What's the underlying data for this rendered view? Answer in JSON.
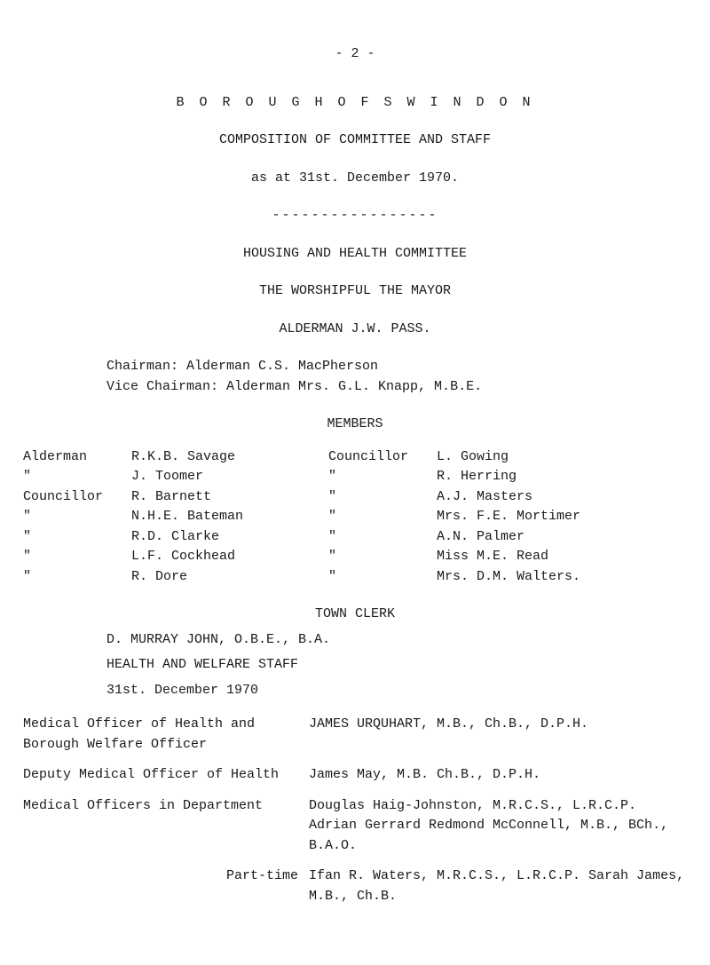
{
  "page_number": "- 2 -",
  "header": {
    "borough_line": "B O R O U G H   O F   S W I N D O N",
    "composition": "COMPOSITION OF COMMITTEE AND STAFF",
    "as_at": "as at 31st. December 1970.",
    "dashes": "-----------------",
    "committee": "HOUSING AND HEALTH COMMITTEE",
    "mayor": "THE WORSHIPFUL THE MAYOR",
    "alderman": "ALDERMAN J.W. PASS."
  },
  "leaders": {
    "chairman": "Chairman:      Alderman C.S. MacPherson",
    "vice_chairman": "Vice Chairman: Alderman Mrs. G.L. Knapp, M.B.E."
  },
  "members_header": "MEMBERS",
  "members": [
    {
      "lt": "Alderman",
      "ln": "R.K.B. Savage",
      "rt": "Councillor",
      "rn": "L. Gowing"
    },
    {
      "lt": "\"",
      "ln": "J. Toomer",
      "rt": "\"",
      "rn": "R. Herring"
    },
    {
      "lt": "Councillor",
      "ln": "R. Barnett",
      "rt": "\"",
      "rn": "A.J. Masters"
    },
    {
      "lt": "\"",
      "ln": "N.H.E. Bateman",
      "rt": "\"",
      "rn": "Mrs. F.E. Mortimer"
    },
    {
      "lt": "\"",
      "ln": "R.D. Clarke",
      "rt": "\"",
      "rn": "A.N. Palmer"
    },
    {
      "lt": "\"",
      "ln": "L.F. Cockhead",
      "rt": "\"",
      "rn": "Miss M.E. Read"
    },
    {
      "lt": "\"",
      "ln": "R. Dore",
      "rt": "\"",
      "rn": "Mrs. D.M. Walters."
    }
  ],
  "town_clerk_header": "TOWN CLERK",
  "town_clerk": "D. MURRAY JOHN, O.B.E., B.A.",
  "hw_staff_header": "HEALTH AND WELFARE STAFF",
  "hw_date": "31st. December 1970",
  "staff": {
    "moh_label": "Medical Officer of Health and Borough Welfare Officer",
    "moh_person": "JAMES URQUHART, M.B., Ch.B., D.P.H.",
    "dmoh_label": "Deputy Medical Officer of Health",
    "dmoh_person": "James May, M.B. Ch.B., D.P.H.",
    "dept_label": "Medical Officers in Department",
    "dept_people": "Douglas Haig-Johnston, M.R.C.S., L.R.C.P. Adrian Gerrard Redmond McConnell, M.B., BCh., B.A.O.",
    "pt_label": "Part-time",
    "pt_people": "Ifan R. Waters, M.R.C.S., L.R.C.P. Sarah James, M.B., Ch.B."
  }
}
